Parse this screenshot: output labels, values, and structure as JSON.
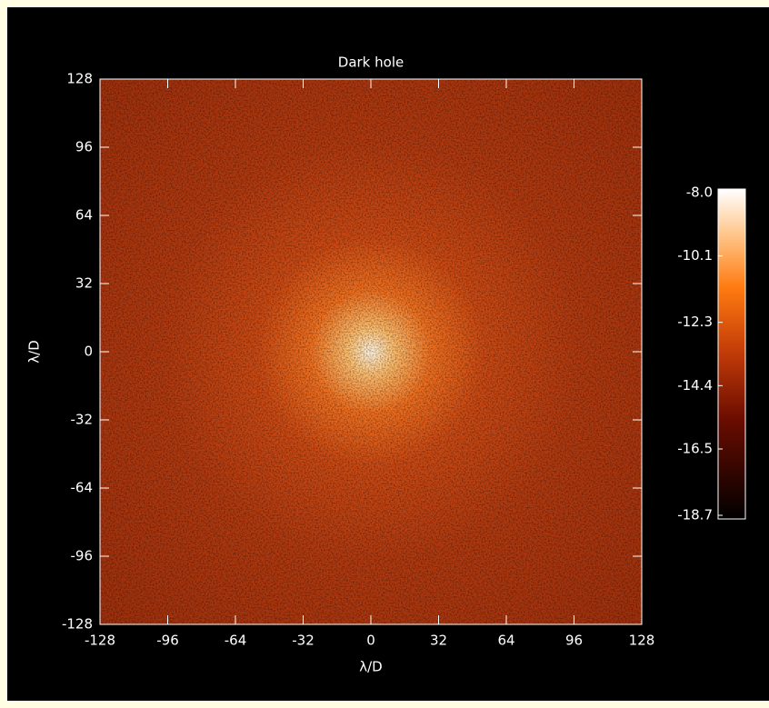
{
  "chart_data": {
    "type": "heatmap",
    "title": "Dark hole",
    "x_label": "λ/D",
    "y_label": "λ/D",
    "xlim": [
      -128,
      128
    ],
    "xticks": [
      -128,
      -96,
      -64,
      -32,
      0,
      32,
      64,
      96,
      128
    ],
    "ylim": [
      -128,
      128
    ],
    "yticks": [
      -128,
      -96,
      -64,
      -32,
      0,
      32,
      64,
      96,
      128
    ],
    "colorbar": {
      "zlim": [
        -18.7,
        -8
      ],
      "ticks": [
        {
          "value": -8,
          "label": "-8.0"
        },
        -10.1,
        -12.3,
        -14.4,
        -16.5,
        -18.7
      ]
    }
  }
}
